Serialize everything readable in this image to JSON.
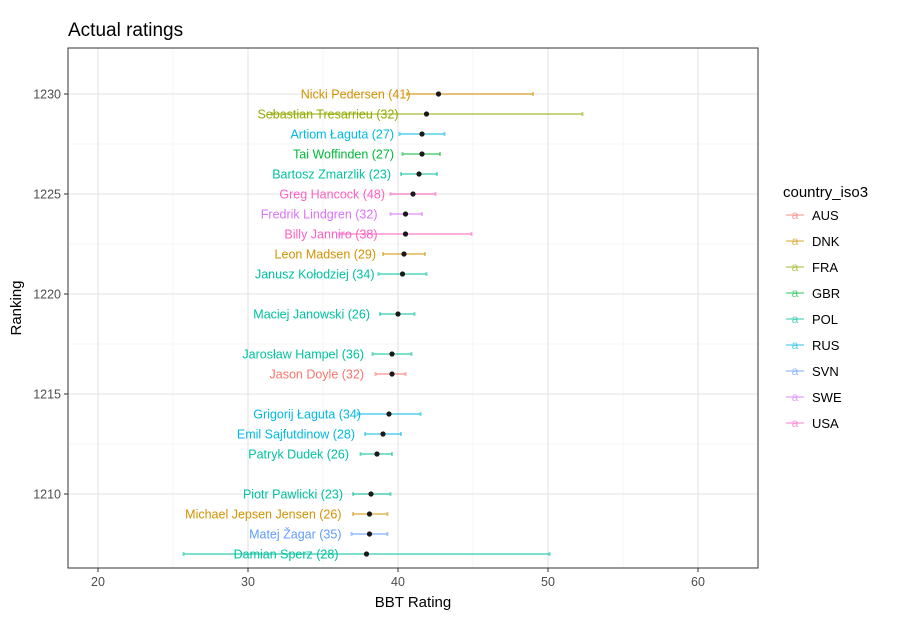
{
  "chart_data": {
    "type": "scatter",
    "title": "Actual ratings",
    "xlabel": "BBT Rating",
    "ylabel": "Ranking",
    "xlim": [
      18,
      64
    ],
    "ylim": [
      1206.3,
      1232.3
    ],
    "x_ticks": [
      20,
      30,
      40,
      50,
      60
    ],
    "y_ticks": [
      1210,
      1215,
      1220,
      1225,
      1230
    ],
    "grid": true,
    "legend": {
      "title": "country_iso3",
      "position": "right",
      "key_glyph": "a",
      "entries": [
        {
          "name": "AUS",
          "color": "#F8766D"
        },
        {
          "name": "DNK",
          "color": "#D39200"
        },
        {
          "name": "FRA",
          "color": "#93AA00"
        },
        {
          "name": "GBR",
          "color": "#00BA38"
        },
        {
          "name": "POL",
          "color": "#00C19F"
        },
        {
          "name": "RUS",
          "color": "#00B9E3"
        },
        {
          "name": "SVN",
          "color": "#619CFF"
        },
        {
          "name": "SWE",
          "color": "#DB72FB"
        },
        {
          "name": "USA",
          "color": "#FF61C3"
        }
      ]
    },
    "points": [
      {
        "label": "Nicki Pedersen (41)",
        "country": "DNK",
        "rating": 42.7,
        "ci": [
          40.6,
          49.0
        ],
        "ranking": 1230.0
      },
      {
        "label": "Sebastian Tresarrieu (32)",
        "country": "FRA",
        "rating": 41.9,
        "ci": [
          31.6,
          52.3
        ],
        "ranking": 1229.0
      },
      {
        "label": "Artiom Łaguta (27)",
        "country": "RUS",
        "rating": 41.6,
        "ci": [
          40.1,
          43.1
        ],
        "ranking": 1228.0
      },
      {
        "label": "Tai Woffinden (27)",
        "country": "GBR",
        "rating": 41.6,
        "ci": [
          40.3,
          42.8
        ],
        "ranking": 1227.0
      },
      {
        "label": "Bartosz Zmarzlik (23)",
        "country": "POL",
        "rating": 41.4,
        "ci": [
          40.2,
          42.6
        ],
        "ranking": 1226.0
      },
      {
        "label": "Greg Hancock (48)",
        "country": "USA",
        "rating": 41.0,
        "ci": [
          39.5,
          42.5
        ],
        "ranking": 1225.0
      },
      {
        "label": "Fredrik Lindgren (32)",
        "country": "SWE",
        "rating": 40.5,
        "ci": [
          39.5,
          41.6
        ],
        "ranking": 1224.0
      },
      {
        "label": "Billy Janniro (38)",
        "country": "USA",
        "rating": 40.5,
        "ci": [
          36.1,
          44.9
        ],
        "ranking": 1223.0
      },
      {
        "label": "Leon Madsen (29)",
        "country": "DNK",
        "rating": 40.4,
        "ci": [
          39.0,
          41.8
        ],
        "ranking": 1222.0
      },
      {
        "label": "Janusz Kołodziej (34)",
        "country": "POL",
        "rating": 40.3,
        "ci": [
          38.7,
          41.9
        ],
        "ranking": 1221.0
      },
      {
        "label": "Maciej Janowski (26)",
        "country": "POL",
        "rating": 40.0,
        "ci": [
          38.8,
          41.1
        ],
        "ranking": 1219.0
      },
      {
        "label": "Jarosław Hampel (36)",
        "country": "POL",
        "rating": 39.6,
        "ci": [
          38.3,
          40.9
        ],
        "ranking": 1217.0
      },
      {
        "label": "Jason Doyle (32)",
        "country": "AUS",
        "rating": 39.6,
        "ci": [
          38.5,
          40.5
        ],
        "ranking": 1216.0
      },
      {
        "label": "Grigorij Łaguta (34)",
        "country": "RUS",
        "rating": 39.4,
        "ci": [
          37.3,
          41.5
        ],
        "ranking": 1214.0
      },
      {
        "label": "Emil Sajfutdinow (28)",
        "country": "RUS",
        "rating": 39.0,
        "ci": [
          37.8,
          40.2
        ],
        "ranking": 1213.0
      },
      {
        "label": "Patryk Dudek (26)",
        "country": "POL",
        "rating": 38.6,
        "ci": [
          37.5,
          39.6
        ],
        "ranking": 1212.0
      },
      {
        "label": "Piotr Pawlicki (23)",
        "country": "POL",
        "rating": 38.2,
        "ci": [
          37.0,
          39.5
        ],
        "ranking": 1210.0
      },
      {
        "label": "Michael Jepsen Jensen (26)",
        "country": "DNK",
        "rating": 38.1,
        "ci": [
          37.0,
          39.3
        ],
        "ranking": 1209.0
      },
      {
        "label": "Matej Žagar (35)",
        "country": "SVN",
        "rating": 38.1,
        "ci": [
          36.9,
          39.3
        ],
        "ranking": 1208.0
      },
      {
        "label": "Damian Sperz (28)",
        "country": "POL",
        "rating": 37.9,
        "ci": [
          25.7,
          50.1
        ],
        "ranking": 1207.0
      }
    ]
  }
}
